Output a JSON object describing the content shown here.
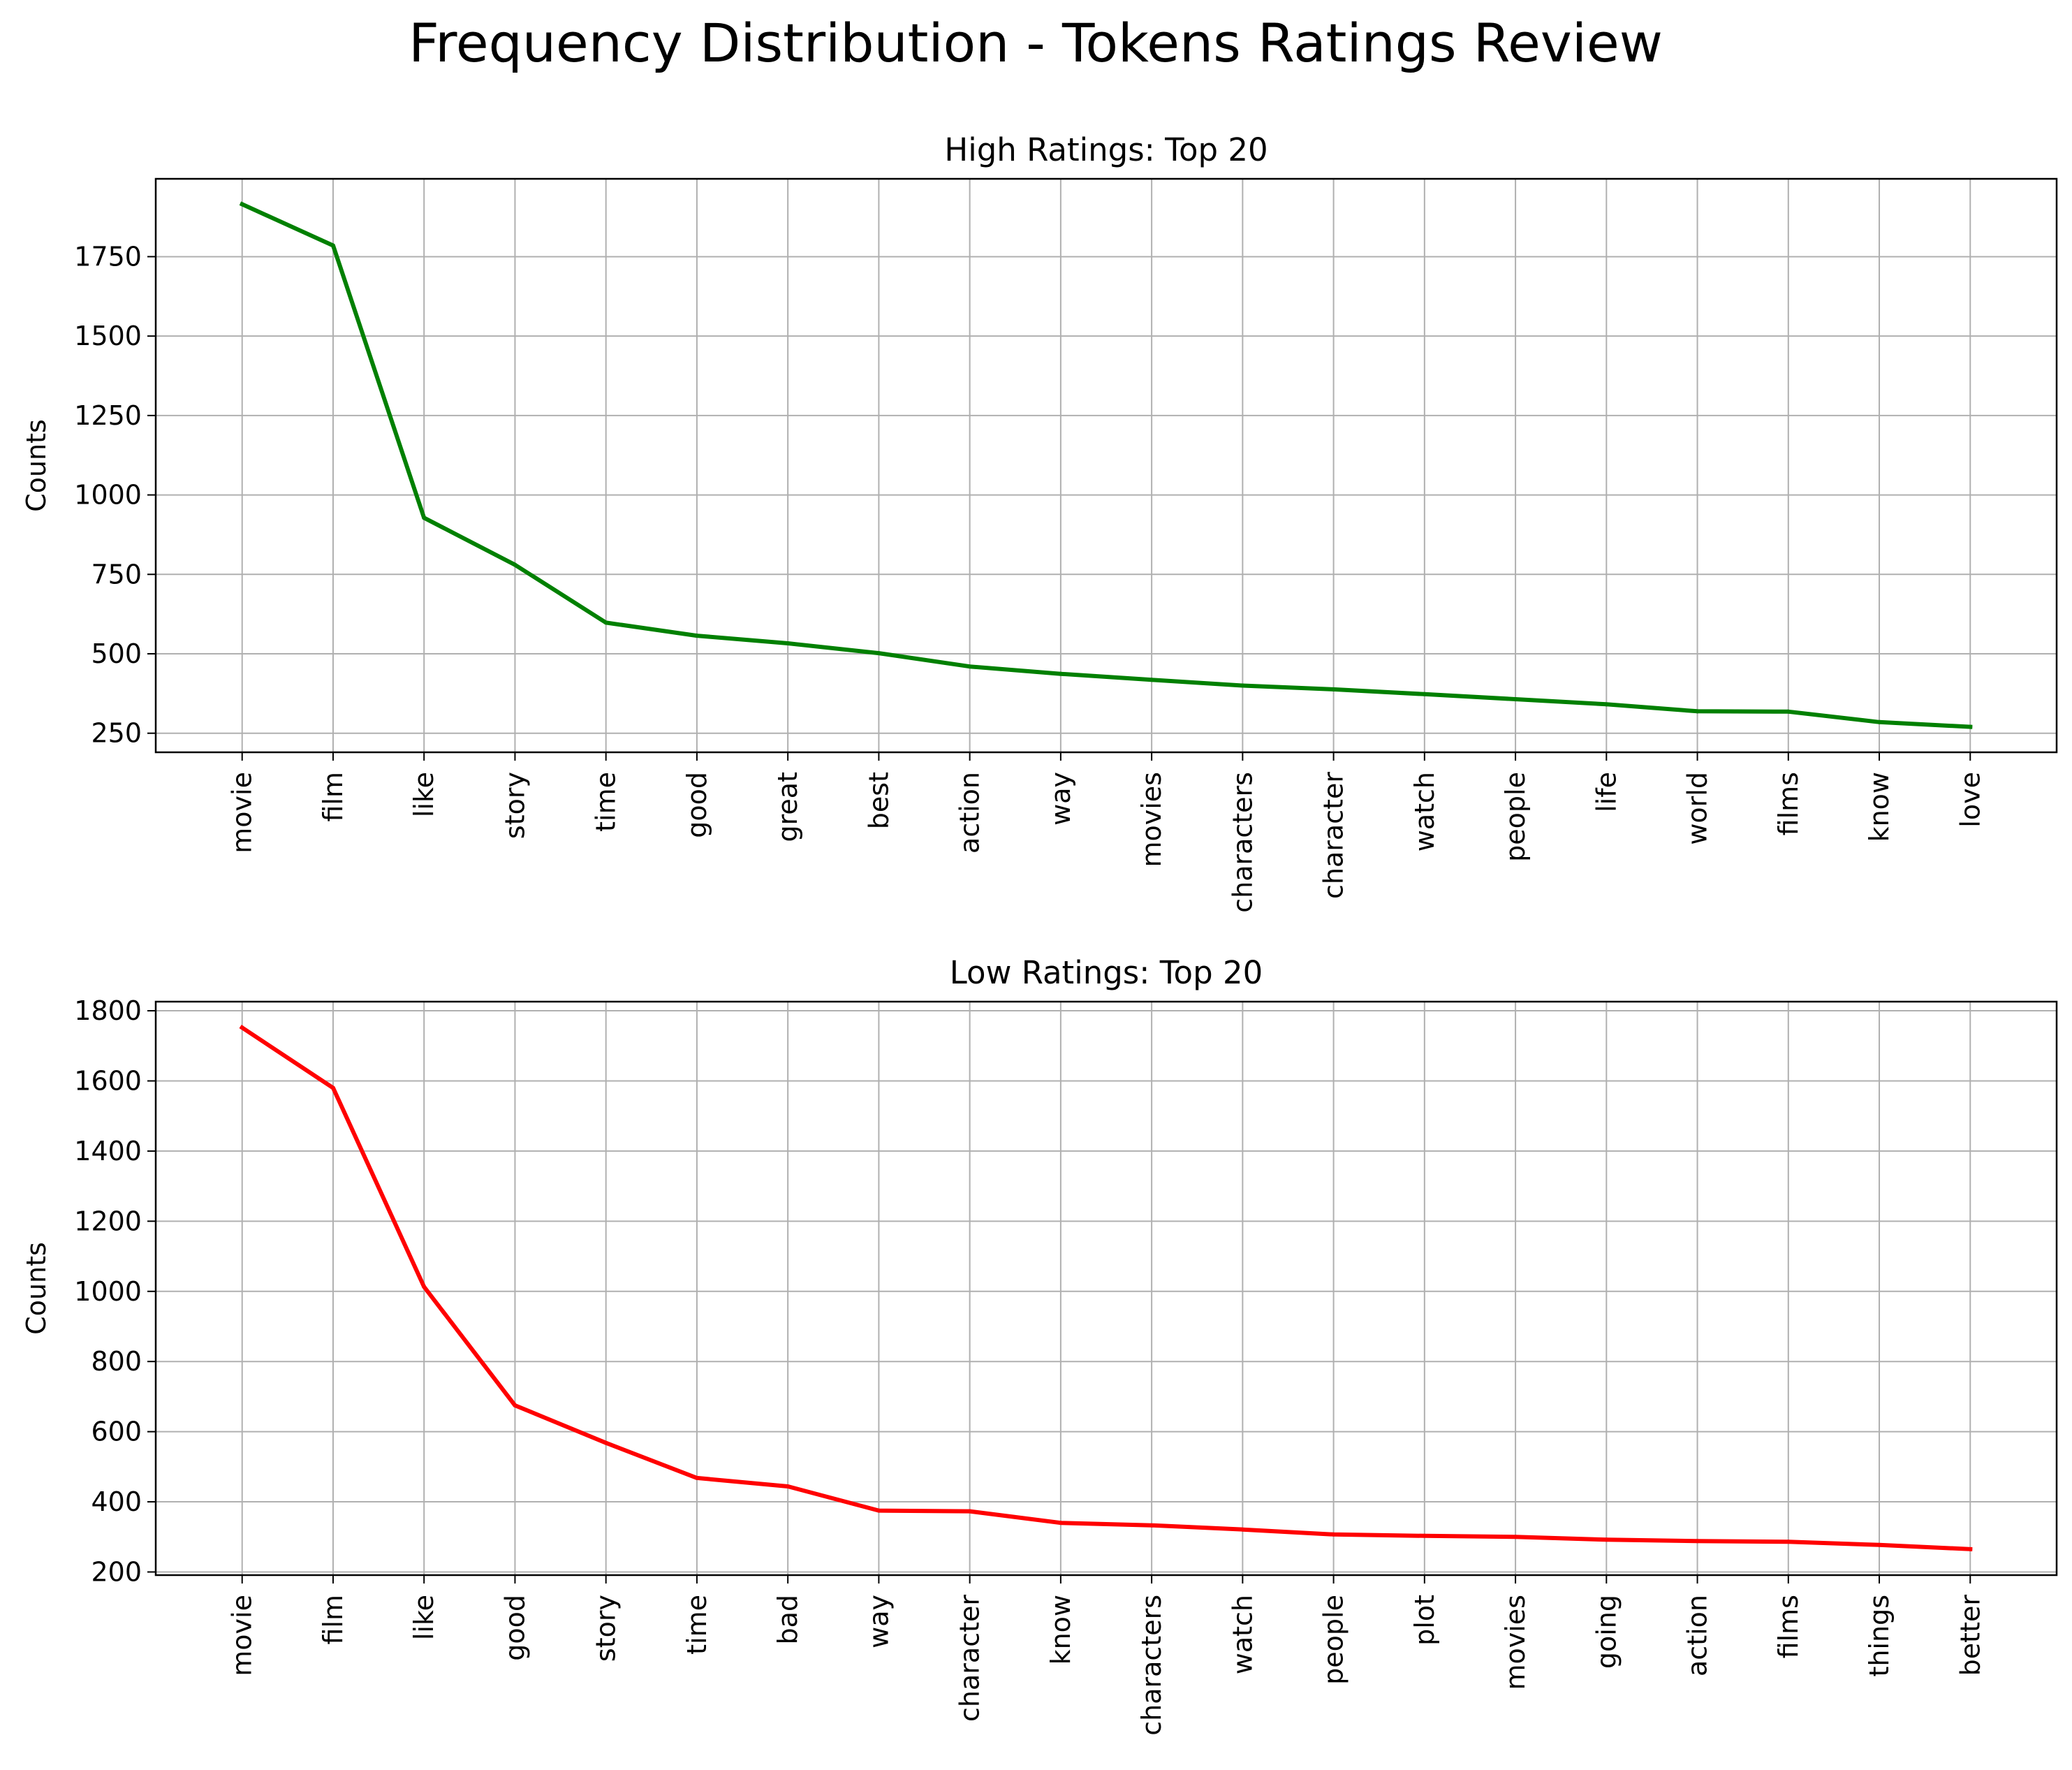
{
  "figure": {
    "suptitle": "Frequency Distribution - Tokens Ratings Review"
  },
  "colors": {
    "grid": "#b0b0b0",
    "axes": "#000000",
    "background": "#ffffff"
  },
  "chart_data": [
    {
      "type": "line",
      "title": "High Ratings: Top 20",
      "xlabel": "",
      "ylabel": "Counts",
      "grid": true,
      "color": "#008000",
      "ylim": [
        190,
        1995
      ],
      "yticks": [
        250,
        500,
        750,
        1000,
        1250,
        1500,
        1750
      ],
      "categories": [
        "movie",
        "film",
        "like",
        "story",
        "time",
        "good",
        "great",
        "best",
        "action",
        "way",
        "movies",
        "characters",
        "character",
        "watch",
        "people",
        "life",
        "world",
        "films",
        "know",
        "love"
      ],
      "values": [
        1915,
        1785,
        928,
        780,
        598,
        557,
        533,
        502,
        460,
        437,
        418,
        400,
        388,
        373,
        357,
        341,
        319,
        318,
        285,
        270
      ]
    },
    {
      "type": "line",
      "title": "Low Ratings: Top 20",
      "xlabel": "",
      "ylabel": "Counts",
      "grid": true,
      "color": "#ff0000",
      "ylim": [
        191,
        1826
      ],
      "yticks": [
        200,
        400,
        600,
        800,
        1000,
        1200,
        1400,
        1600,
        1800
      ],
      "categories": [
        "movie",
        "film",
        "like",
        "good",
        "story",
        "time",
        "bad",
        "way",
        "character",
        "know",
        "characters",
        "watch",
        "people",
        "plot",
        "movies",
        "going",
        "action",
        "films",
        "things",
        "better"
      ],
      "values": [
        1752,
        1580,
        1013,
        675,
        568,
        468,
        444,
        375,
        373,
        340,
        333,
        321,
        307,
        303,
        300,
        292,
        288,
        286,
        277,
        265
      ]
    }
  ]
}
